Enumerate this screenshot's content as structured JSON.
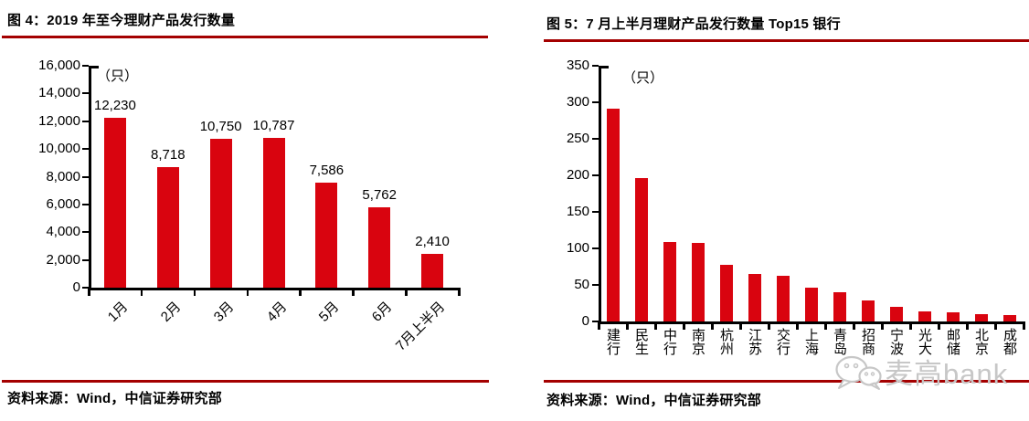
{
  "panels": {
    "left": {
      "title": "图 4：2019 年至今理财产品发行数量",
      "source": "资料来源：Wind，中信证券研究部"
    },
    "right": {
      "title": "图 5：7 月上半月理财产品发行数量 Top15 银行",
      "source": "资料来源：Wind，中信证券研究部"
    }
  },
  "watermark": {
    "text": "麦高bank",
    "icon": "wechat-chat-bubbles-icon"
  },
  "colors": {
    "bar": "#d9040f",
    "rule": "#a40000",
    "axis": "#000000",
    "text": "#000000",
    "watermark_gray": "#c7c7c7"
  },
  "chart_data": [
    {
      "id": "fig4",
      "type": "bar",
      "title": "图 4：2019 年至今理财产品发行数量",
      "unit_label": "（只）",
      "categories": [
        "1月",
        "2月",
        "3月",
        "4月",
        "5月",
        "6月",
        "7月上半月"
      ],
      "values": [
        12230,
        8718,
        10750,
        10787,
        7586,
        5762,
        2410
      ],
      "value_labels": [
        "12,230",
        "8,718",
        "10,750",
        "10,787",
        "7,586",
        "5,762",
        "2,410"
      ],
      "ylim": [
        0,
        16000
      ],
      "ytick_values": [
        0,
        2000,
        4000,
        6000,
        8000,
        10000,
        12000,
        14000,
        16000
      ],
      "ytick_labels": [
        "0",
        "2,000",
        "4,000",
        "6,000",
        "8,000",
        "10,000",
        "12,000",
        "14,000",
        "16,000"
      ],
      "grid": false,
      "legend": null,
      "bar_color": "#d9040f",
      "source": "资料来源：Wind，中信证券研究部"
    },
    {
      "id": "fig5",
      "type": "bar",
      "title": "图 5：7 月上半月理财产品发行数量 Top15 银行",
      "unit_label": "（只）",
      "categories": [
        "建行",
        "民生",
        "中行",
        "南京",
        "杭州",
        "江苏",
        "交行",
        "上海",
        "青岛",
        "招商",
        "宁波",
        "光大",
        "邮储",
        "北京",
        "成都"
      ],
      "values": [
        291,
        196,
        109,
        107,
        77,
        65,
        63,
        46,
        40,
        29,
        20,
        14,
        12,
        10,
        9
      ],
      "value_labels": null,
      "ylim": [
        0,
        350
      ],
      "ytick_values": [
        0,
        50,
        100,
        150,
        200,
        250,
        300,
        350
      ],
      "ytick_labels": [
        "0",
        "50",
        "100",
        "150",
        "200",
        "250",
        "300",
        "350"
      ],
      "grid": false,
      "legend": null,
      "bar_color": "#d9040f",
      "source": "资料来源：Wind，中信证券研究部"
    }
  ]
}
